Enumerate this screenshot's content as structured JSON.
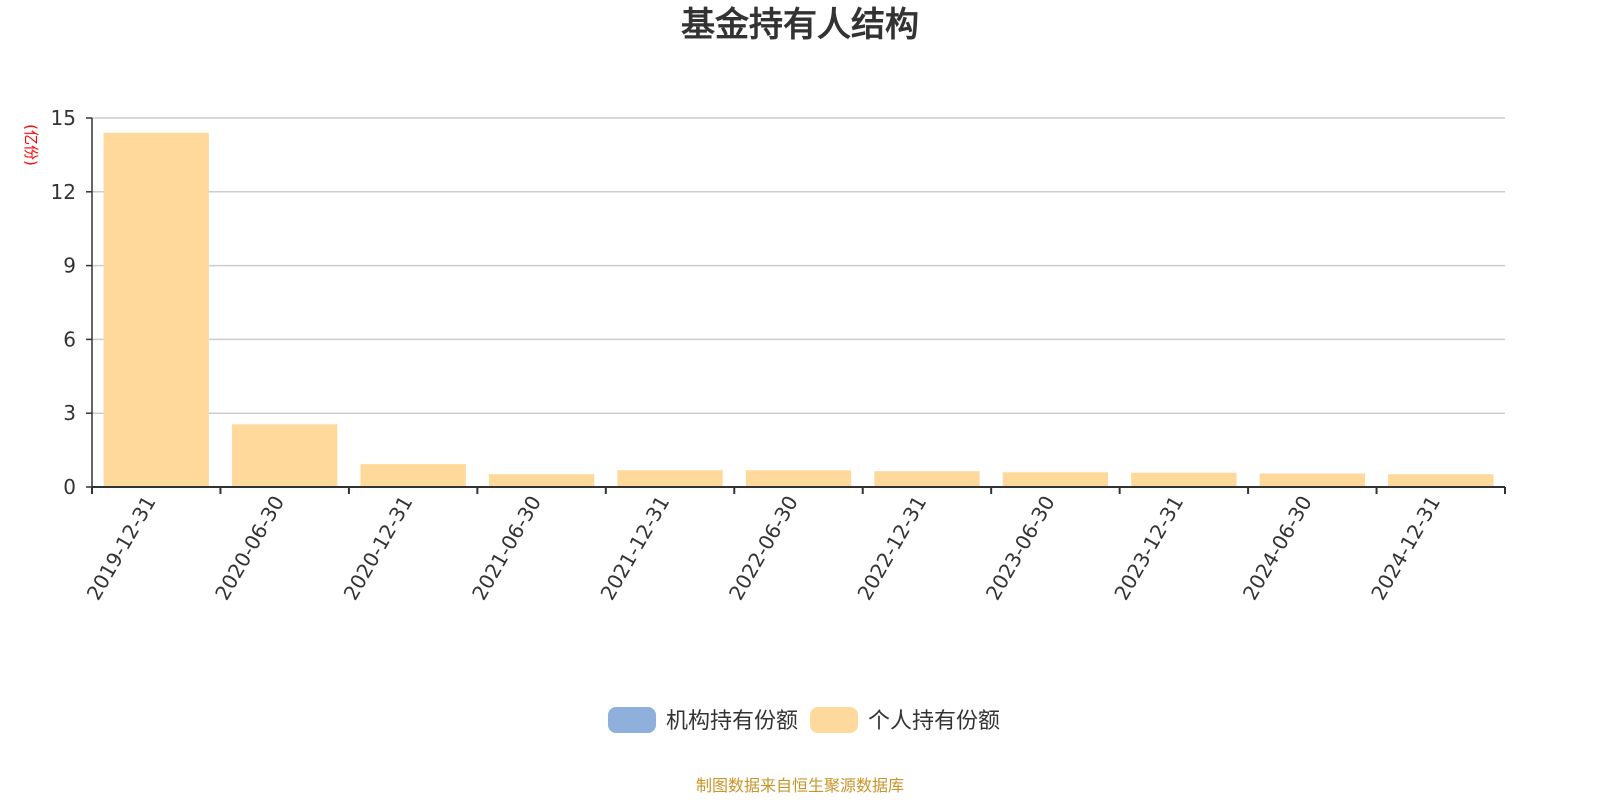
{
  "chart_data": {
    "type": "bar",
    "title": "基金持有人结构",
    "unit_label": "(亿份)",
    "categories": [
      "2019-12-31",
      "2020-06-30",
      "2020-12-31",
      "2021-06-30",
      "2021-12-31",
      "2022-06-30",
      "2022-12-31",
      "2023-06-30",
      "2023-12-31",
      "2024-06-30",
      "2024-12-31"
    ],
    "series": [
      {
        "name": "机构持有份额",
        "color": "#8fb0dd",
        "values": [
          0,
          0,
          0,
          0,
          0,
          0,
          0,
          0,
          0,
          0,
          0
        ]
      },
      {
        "name": "个人持有份额",
        "color": "#fed99b",
        "values": [
          14.4,
          2.55,
          0.93,
          0.52,
          0.68,
          0.68,
          0.64,
          0.6,
          0.58,
          0.55,
          0.52
        ]
      }
    ],
    "yticks": [
      0,
      3,
      6,
      9,
      12,
      15
    ],
    "ylim": [
      0,
      15
    ],
    "grid": true,
    "legend_position": "bottom-center",
    "source_note": "制图数据来自恒生聚源数据库"
  }
}
